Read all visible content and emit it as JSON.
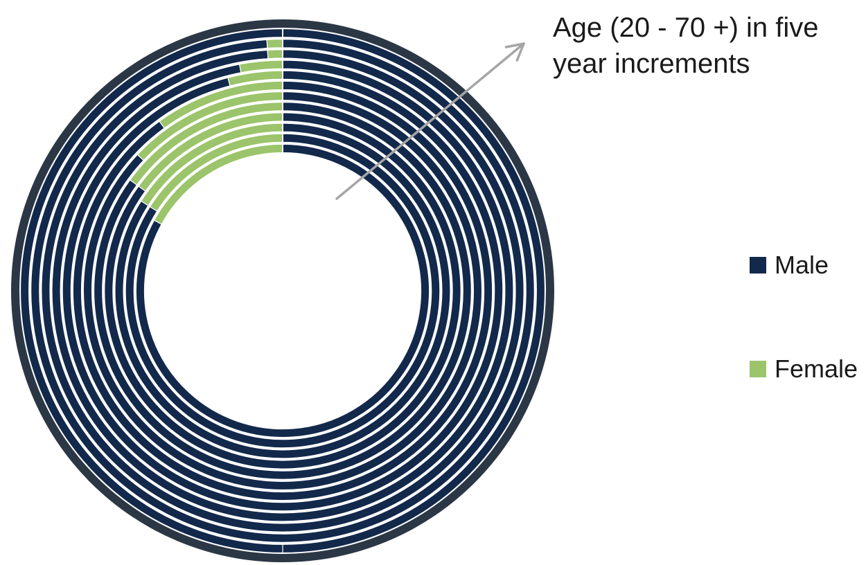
{
  "annotation": {
    "text": "Age (20 - 70 +) in five year increments"
  },
  "colors": {
    "male": "#13294b",
    "female": "#9bc46b",
    "outer_ring": "#2c3746",
    "arrow": "#a6a6a6",
    "separator": "#ffffff"
  },
  "legend": [
    {
      "key": "male",
      "label": "Male"
    },
    {
      "key": "female",
      "label": "Female"
    }
  ],
  "chart_data": {
    "type": "donut",
    "title": "",
    "series": [
      {
        "name": "Male",
        "values": [
          83,
          84,
          84,
          85,
          85,
          87,
          90,
          96,
          97,
          99,
          99,
          100
        ]
      },
      {
        "name": "Female",
        "values": [
          17,
          16,
          16,
          15,
          15,
          13,
          10,
          4,
          3,
          1,
          1,
          0
        ]
      }
    ],
    "units": "percent",
    "legend_position": "right",
    "grid": false
  }
}
